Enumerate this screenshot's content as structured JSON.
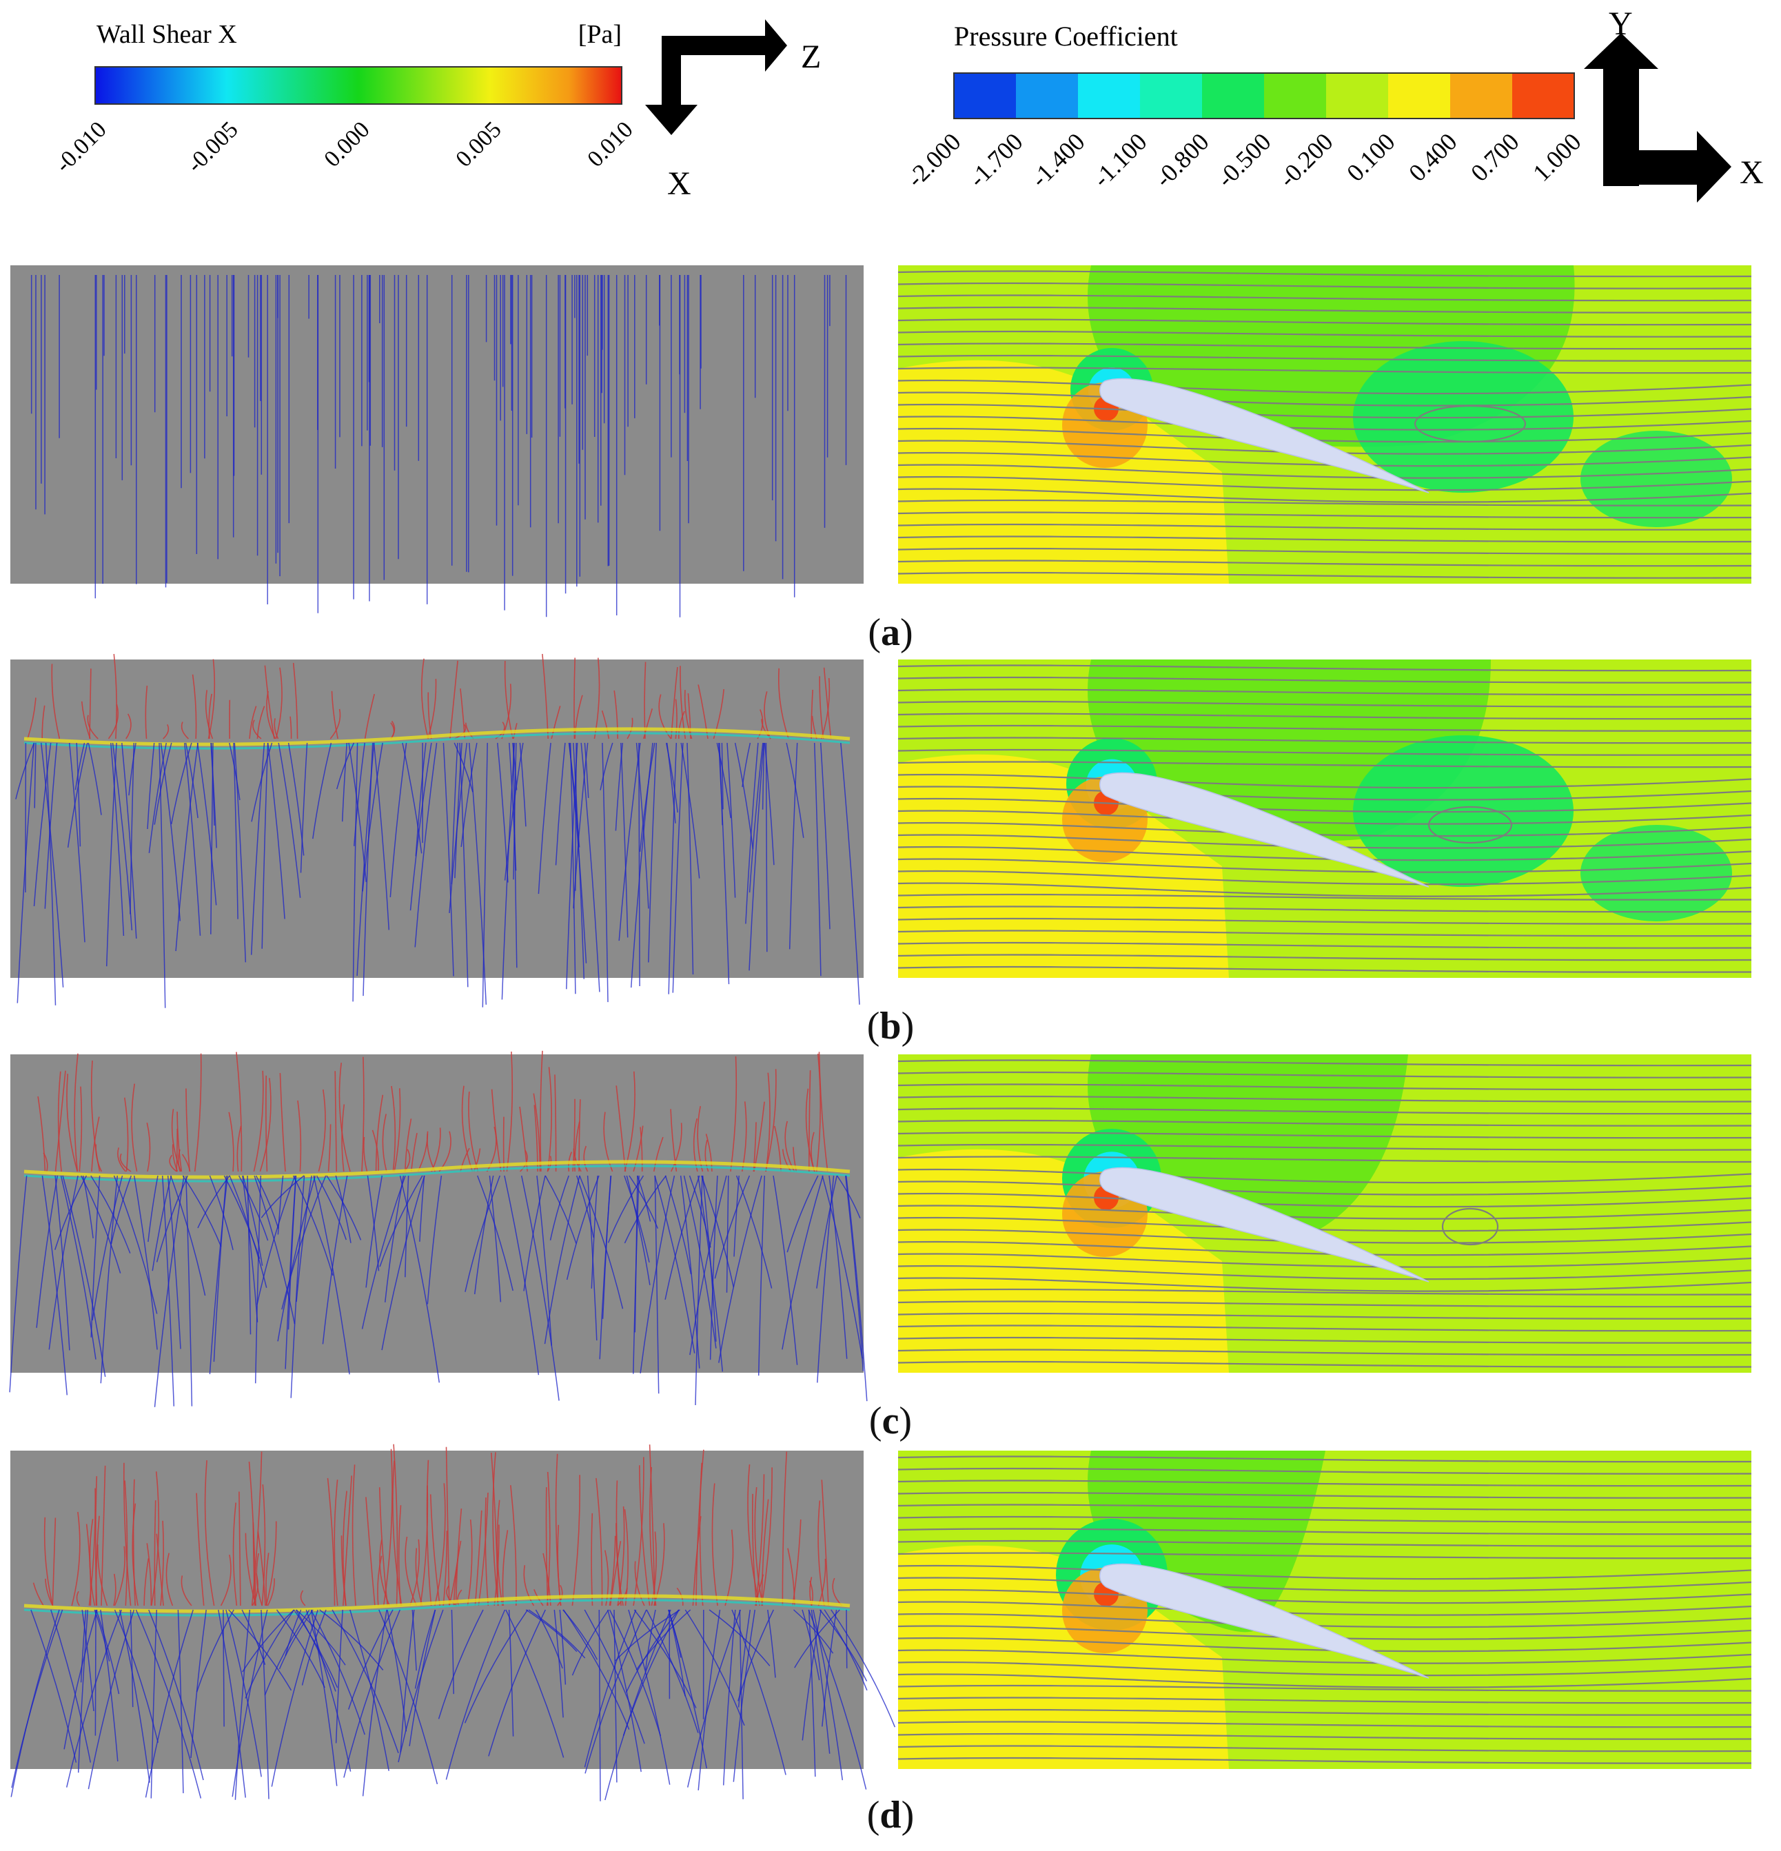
{
  "wall_shear_legend": {
    "title": "Wall Shear X",
    "unit": "[Pa]",
    "ticks": [
      "-0.010",
      "-0.005",
      "0.000",
      "0.005",
      "0.010"
    ]
  },
  "pressure_legend": {
    "title": "Pressure Coefficient",
    "ticks": [
      "-2.000",
      "-1.700",
      "-1.400",
      "-1.100",
      "-0.800",
      "-0.500",
      "-0.200",
      "0.100",
      "0.400",
      "0.700",
      "1.000"
    ],
    "colors": [
      "#0a43e6",
      "#1196f2",
      "#12e8f5",
      "#16f2b6",
      "#17e65c",
      "#6be617",
      "#b8ef16",
      "#f7ef13",
      "#f7a814",
      "#f44a10"
    ]
  },
  "axes_left": {
    "horizontal": "Z",
    "vertical": "X"
  },
  "axes_right": {
    "horizontal": "X",
    "vertical": "Y"
  },
  "panels": [
    {
      "label": "a"
    },
    {
      "label": "b"
    },
    {
      "label": "c"
    },
    {
      "label": "d"
    }
  ],
  "colors": {
    "surface_gray": "#8b8b8b",
    "shear_negative": "#1a22c8",
    "shear_positive": "#c83a3a",
    "streamline": "#7d7d7d",
    "airfoil": "#d5dcf3",
    "field_yellow": "#f6ef15",
    "field_lime": "#b8ef16",
    "field_green": "#6be617",
    "field_mint": "#17e65c",
    "stagnation_orange": "#f7a814",
    "stagnation_red": "#f44a10"
  }
}
